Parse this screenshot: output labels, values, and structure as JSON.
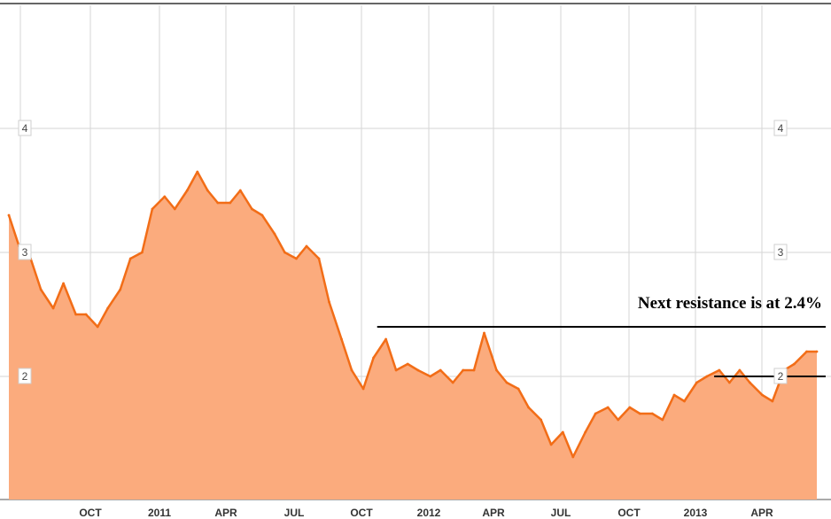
{
  "chart_data": {
    "type": "area",
    "title": "",
    "xlabel": "",
    "ylabel": "",
    "x_ticks": [
      "OCT",
      "2011",
      "APR",
      "JUL",
      "OCT",
      "2012",
      "APR",
      "JUL",
      "OCT",
      "2013",
      "APR"
    ],
    "y_ticks": [
      "4",
      "3",
      "2"
    ],
    "ylim": [
      1.0,
      4.95
    ],
    "grid": true,
    "colors": {
      "line": "#f26d17",
      "fill": "#fbab7d",
      "grid": "#d6d6d6",
      "annotation": "#000000"
    },
    "series": [
      {
        "x": [
          "2010-06-01",
          "2010-06-15",
          "2010-07-01",
          "2010-07-15",
          "2010-08-01",
          "2010-08-15",
          "2010-09-01",
          "2010-09-15",
          "2010-10-01",
          "2010-10-15",
          "2010-11-01",
          "2010-11-15",
          "2010-12-01",
          "2010-12-15",
          "2011-01-01",
          "2011-01-15",
          "2011-02-01",
          "2011-02-15",
          "2011-03-01",
          "2011-03-15",
          "2011-04-01",
          "2011-04-15",
          "2011-05-01",
          "2011-05-15",
          "2011-06-01",
          "2011-06-15",
          "2011-07-01",
          "2011-07-15",
          "2011-08-01",
          "2011-08-15",
          "2011-09-01",
          "2011-09-15",
          "2011-10-01",
          "2011-10-15",
          "2011-11-01",
          "2011-11-15",
          "2011-12-01",
          "2011-12-15",
          "2012-01-01",
          "2012-01-15",
          "2012-02-01",
          "2012-02-15",
          "2012-03-01",
          "2012-03-15",
          "2012-04-01",
          "2012-04-15",
          "2012-05-01",
          "2012-05-15",
          "2012-06-01",
          "2012-06-15",
          "2012-07-01",
          "2012-07-15",
          "2012-08-01",
          "2012-08-15",
          "2012-09-01",
          "2012-09-15",
          "2012-10-01",
          "2012-10-15",
          "2012-11-01",
          "2012-11-15",
          "2012-12-01",
          "2012-12-15",
          "2013-01-01",
          "2013-01-15",
          "2013-02-01",
          "2013-02-15",
          "2013-03-01",
          "2013-03-15",
          "2013-04-01",
          "2013-04-15",
          "2013-05-01",
          "2013-05-15",
          "2013-06-01",
          "2013-06-15"
        ],
        "values": [
          3.3,
          3.05,
          2.95,
          2.7,
          2.55,
          2.75,
          2.5,
          2.5,
          2.4,
          2.55,
          2.7,
          2.95,
          3.0,
          3.35,
          3.45,
          3.35,
          3.5,
          3.65,
          3.5,
          3.4,
          3.4,
          3.5,
          3.35,
          3.3,
          3.15,
          3.0,
          2.95,
          3.05,
          2.95,
          2.6,
          2.3,
          2.05,
          1.9,
          2.15,
          2.3,
          2.05,
          2.1,
          2.05,
          2.0,
          2.05,
          1.95,
          2.05,
          2.05,
          2.35,
          2.05,
          1.95,
          1.9,
          1.75,
          1.65,
          1.45,
          1.55,
          1.35,
          1.55,
          1.7,
          1.75,
          1.65,
          1.75,
          1.7,
          1.7,
          1.65,
          1.85,
          1.8,
          1.95,
          2.0,
          2.05,
          1.95,
          2.05,
          1.95,
          1.85,
          1.8,
          2.05,
          2.1,
          2.2,
          2.2
        ]
      }
    ],
    "annotations": {
      "resistance_text": "Next resistance is at 2.4%",
      "resistance_level": 2.4,
      "resistance_start": "2011-10-20",
      "support_level": 2.0,
      "support_start": "2013-01-25"
    }
  }
}
